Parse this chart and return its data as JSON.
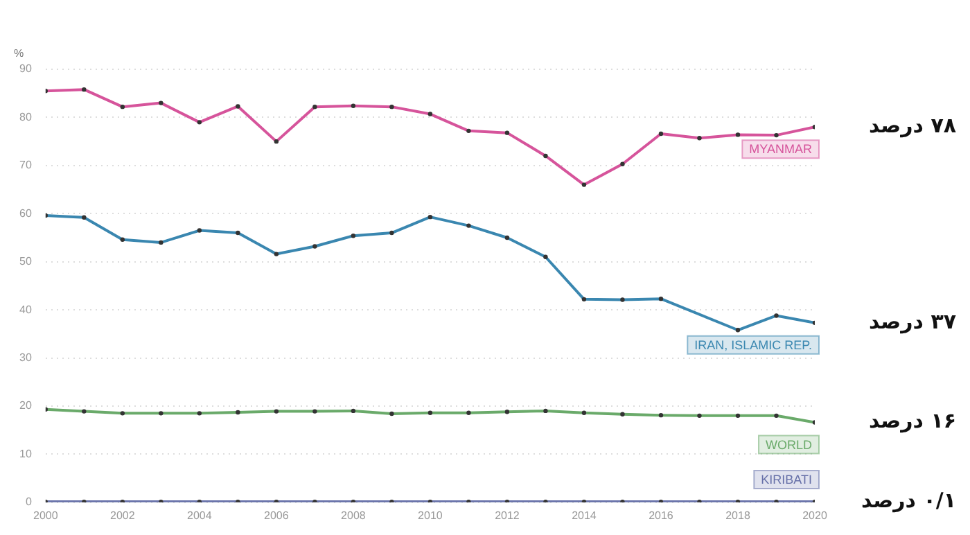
{
  "chart_data": {
    "type": "line",
    "ylabel": "%",
    "x": [
      2000,
      2001,
      2002,
      2003,
      2004,
      2005,
      2006,
      2007,
      2008,
      2009,
      2010,
      2011,
      2012,
      2013,
      2014,
      2015,
      2016,
      2017,
      2018,
      2019,
      2020
    ],
    "series": [
      {
        "name": "MYANMAR",
        "color": "#d6549b",
        "values": [
          85.5,
          85.8,
          82.2,
          83,
          79,
          82.3,
          75,
          82.2,
          82.4,
          82.2,
          80.7,
          77.2,
          76.8,
          72,
          66,
          70.3,
          76.6,
          75.7,
          76.4,
          76.3,
          78
        ]
      },
      {
        "name": "IRAN, ISLAMIC REP.",
        "color": "#3a87b0",
        "values": [
          59.6,
          59.2,
          54.6,
          54,
          56.5,
          56,
          51.6,
          53.2,
          55.4,
          56,
          59.3,
          57.5,
          55,
          51,
          42.2,
          42.1,
          42.3,
          null,
          35.8,
          38.8,
          37.3
        ]
      },
      {
        "name": "WORLD",
        "color": "#6aaa6a",
        "values": [
          19.3,
          18.9,
          18.5,
          18.5,
          18.5,
          18.7,
          18.9,
          18.9,
          19,
          18.4,
          18.6,
          18.6,
          18.8,
          19,
          18.6,
          18.3,
          18.1,
          18,
          18,
          18,
          16.6
        ]
      },
      {
        "name": "KIRIBATI",
        "color": "#6670a8",
        "values": [
          0.1,
          0.1,
          0.1,
          0.1,
          0.1,
          0.1,
          0.1,
          0.1,
          0.1,
          0.1,
          0.1,
          0.1,
          0.1,
          0.1,
          0.1,
          0.1,
          0.1,
          0.1,
          0.1,
          0.1,
          0.1
        ]
      }
    ],
    "xlim": [
      2000,
      2020
    ],
    "xticks": [
      2000,
      2002,
      2004,
      2006,
      2008,
      2010,
      2012,
      2014,
      2016,
      2018,
      2020
    ],
    "ylim": [
      0,
      90
    ],
    "yticks": [
      0,
      10,
      20,
      30,
      40,
      50,
      60,
      70,
      80,
      90
    ],
    "grid": "y",
    "legend": false,
    "marker": "circle",
    "line_style": "solid",
    "annotations": [
      "۷۸ درصد",
      "۳۷ درصد",
      "۱۶ درصد",
      "۰/۱ درصد"
    ]
  }
}
